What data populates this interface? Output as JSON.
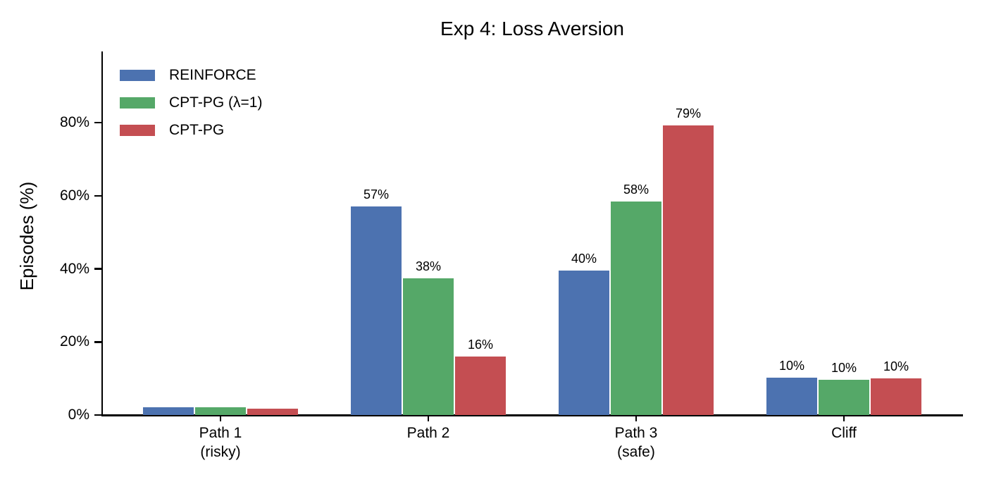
{
  "chart_data": {
    "type": "bar",
    "title": "Exp 4: Loss Aversion",
    "xlabel": "",
    "ylabel": "Episodes (%)",
    "categories": [
      "Path 1\n(risky)",
      "Path 2",
      "Path 3\n(safe)",
      "Cliff"
    ],
    "ytick_values": [
      0,
      20,
      40,
      60,
      80
    ],
    "ytick_labels": [
      "0%",
      "20%",
      "40%",
      "60%",
      "80%"
    ],
    "ylim": [
      0,
      99.5
    ],
    "grid": false,
    "legend_position": "upper-left",
    "background_color": "#ffffff",
    "axis_color": "#000000",
    "text_color": "#000000",
    "series": [
      {
        "name": "REINFORCE",
        "color": "#4C72B0",
        "values": [
          2.1,
          57.0,
          39.5,
          10.2
        ],
        "bar_labels": [
          "",
          "57%",
          "40%",
          "10%"
        ]
      },
      {
        "name": "CPT-PG (λ=1)",
        "color": "#55A868",
        "values": [
          2.1,
          37.4,
          58.4,
          9.6
        ],
        "bar_labels": [
          "",
          "38%",
          "58%",
          "10%"
        ]
      },
      {
        "name": "CPT-PG",
        "color": "#C44E52",
        "values": [
          1.7,
          16.0,
          79.3,
          10.1
        ],
        "bar_labels": [
          "",
          "16%",
          "79%",
          "10%"
        ]
      }
    ]
  }
}
